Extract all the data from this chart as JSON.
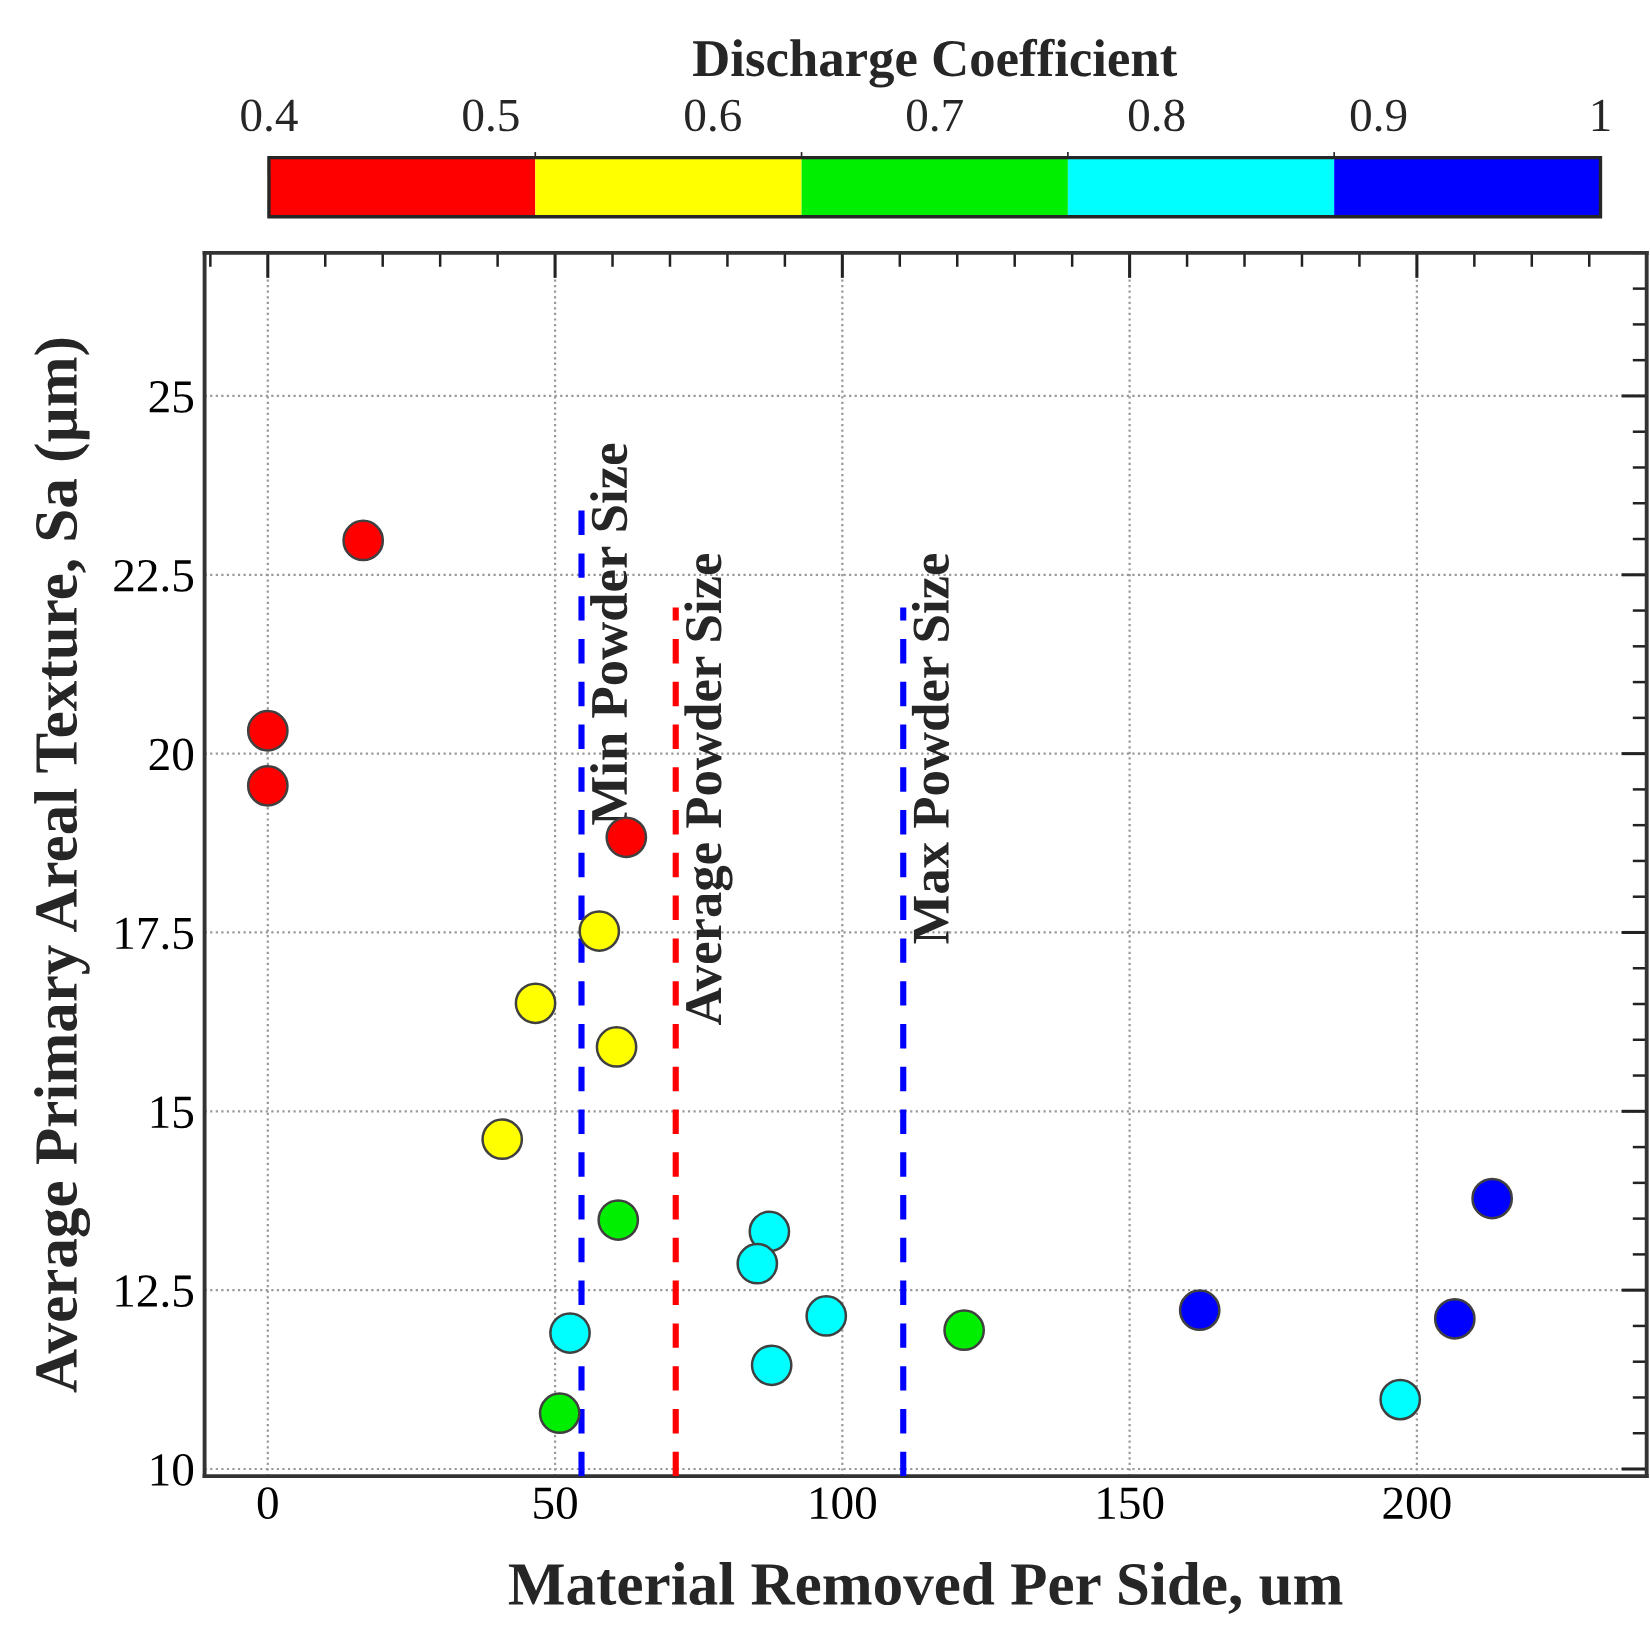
{
  "chart_data": {
    "type": "scatter",
    "xlabel": "Material Removed Per Side, um",
    "ylabel": "Average Primary Areal Texture, Sa (µm)",
    "clabel": "Discharge Coefficient",
    "x": [
      0,
      0,
      16.6,
      62.4,
      57.7,
      46.6,
      60.7,
      40.8,
      61.0,
      50.8,
      121.2,
      52.6,
      87.3,
      85.2,
      97.2,
      87.7,
      197.1,
      162.2,
      206.6,
      213.1
    ],
    "values": [
      20.32,
      19.55,
      22.98,
      18.83,
      17.52,
      16.51,
      15.9,
      14.61,
      13.48,
      10.78,
      11.94,
      11.9,
      13.32,
      12.87,
      12.14,
      11.45,
      10.97,
      12.22,
      12.1,
      13.78
    ],
    "colors": [
      "#ff0000",
      "#ff0000",
      "#ff0000",
      "#ff0000",
      "#ffff00",
      "#ffff00",
      "#ffff00",
      "#ffff00",
      "#00ee00",
      "#00ee00",
      "#00ee00",
      "#00ffff",
      "#00ffff",
      "#00ffff",
      "#00ffff",
      "#00ffff",
      "#00ffff",
      "#0000ff",
      "#0000ff",
      "#0000ff"
    ],
    "clim": [
      0.4,
      1
    ],
    "cticks": [
      {
        "value": 0.4,
        "label": "0.4"
      },
      {
        "value": 0.5,
        "label": "0.5"
      },
      {
        "value": 0.6,
        "label": "0.6"
      },
      {
        "value": 0.7,
        "label": "0.7"
      },
      {
        "value": 0.8,
        "label": "0.8"
      },
      {
        "value": 0.9,
        "label": "0.9"
      },
      {
        "value": 1,
        "label": "1"
      }
    ],
    "xlim": [
      -11,
      240
    ],
    "ylim": [
      9.9,
      27
    ],
    "xticks": [
      0,
      50,
      100,
      150,
      200
    ],
    "yticks": [
      10,
      12.5,
      15,
      17.5,
      20,
      22.5,
      25
    ],
    "ref_lines": [
      {
        "axis": "x",
        "value": 54.6,
        "label": "Min Powder Size",
        "color": "#0000ff",
        "line_style": "dashed"
      },
      {
        "axis": "x",
        "value": 71.0,
        "label": "Average Powder Size",
        "color": "#ff0000",
        "line_style": "dashed"
      },
      {
        "axis": "x",
        "value": 110.6,
        "label": "Max Powder Size",
        "color": "#0000ff",
        "line_style": "dashed"
      }
    ],
    "grid": true,
    "marker": "circle"
  }
}
